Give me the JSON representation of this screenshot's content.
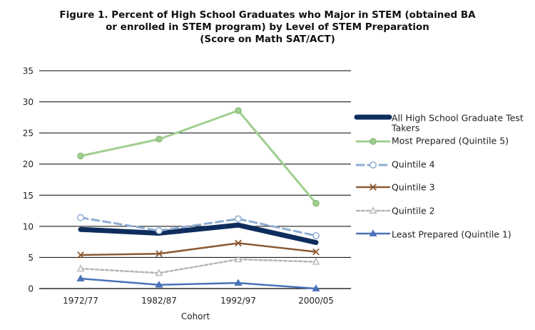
{
  "chart_data": {
    "type": "line",
    "title": "Figure 1. Percent of High School Graduates who Major in STEM (obtained BA or enrolled in STEM program) by Level of STEM Preparation (Score on Math SAT/ACT)",
    "title_lines": [
      "Figure 1. Percent of High School Graduates who Major in STEM (obtained BA",
      "or enrolled in STEM program) by Level of STEM Preparation",
      "(Score on Math SAT/ACT)"
    ],
    "xlabel": "Cohort",
    "ylabel": "",
    "categories": [
      "1972/77",
      "1982/87",
      "1992/97",
      "2000/05"
    ],
    "ylim": [
      0,
      35
    ],
    "yticks": [
      0,
      5,
      10,
      15,
      20,
      25,
      30,
      35
    ],
    "grid": true,
    "legend_position": "right",
    "series": [
      {
        "name": "All High School Graduate Test Takers",
        "values": [
          9.5,
          8.9,
          10.2,
          7.4
        ],
        "color": "#0f2d5c",
        "style": "solid",
        "marker": "none",
        "width": 7
      },
      {
        "name": "Most Prepared (Quintile 5)",
        "values": [
          21.3,
          24.0,
          28.6,
          13.7
        ],
        "color": "#9fcf8f",
        "style": "solid",
        "marker": "circle-filled",
        "width": 3
      },
      {
        "name": "Quintile 4",
        "values": [
          11.4,
          9.3,
          11.2,
          8.5
        ],
        "color": "#8fadd4",
        "style": "dashed",
        "marker": "circle-open",
        "width": 3
      },
      {
        "name": "Quintile 3",
        "values": [
          5.4,
          5.6,
          7.3,
          5.9
        ],
        "color": "#8b5a34",
        "style": "solid",
        "marker": "x",
        "width": 2.5
      },
      {
        "name": "Quintile 2",
        "values": [
          3.2,
          2.5,
          4.7,
          4.3
        ],
        "color": "#b5b5b5",
        "style": "dotted",
        "marker": "triangle-open",
        "width": 2.5
      },
      {
        "name": "Least Prepared (Quintile 1)",
        "values": [
          1.6,
          0.6,
          0.9,
          0.0
        ],
        "color": "#4a72b8",
        "style": "solid",
        "marker": "triangle-filled",
        "width": 2.5
      }
    ]
  }
}
